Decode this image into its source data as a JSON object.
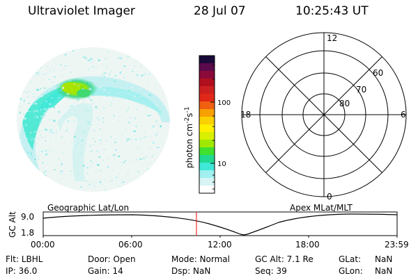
{
  "header": {
    "title": "Ultraviolet Imager",
    "date": "28 Jul 07",
    "time": "10:25:43 UT"
  },
  "colorbar": {
    "label_parts": [
      "photon cm",
      "-2",
      "s",
      "-1"
    ],
    "tick_labels": [
      "100",
      "10"
    ],
    "colors": [
      "#1a0a3a",
      "#5a0a4a",
      "#8b0a3a",
      "#b0101e",
      "#cc2020",
      "#e02818",
      "#f06010",
      "#f8a000",
      "#fad000",
      "#fff000",
      "#d8f000",
      "#a0e800",
      "#40e030",
      "#20d890",
      "#40e8d8",
      "#a0f0f0",
      "#d8f4f4",
      "#ffffff"
    ]
  },
  "polar": {
    "labels": {
      "top": "12",
      "bottom": "0",
      "left": "18",
      "right": "6"
    },
    "ring_labels": [
      "60",
      "70",
      "80"
    ]
  },
  "strip": {
    "left_title": "Geographic Lat/Lon",
    "right_title": "Apex MLat/MLT",
    "y_axis_label": "GC Alt",
    "y_ticks": [
      "9.0",
      "1.8"
    ],
    "x_ticks": [
      "00:00",
      "06:00",
      "12:00",
      "18:00",
      "23:59"
    ],
    "marker_color": "#ff0000"
  },
  "info": {
    "flt_label": "Flt:",
    "flt_value": "LBHL",
    "ip_label": "IP:",
    "ip_value": "36.0",
    "door_label": "Door:",
    "door_value": "Open",
    "gain_label": "Gain:",
    "gain_value": "14",
    "mode_label": "Mode:",
    "mode_value": "Normal",
    "dsp_label": "Dsp:",
    "dsp_value": "NaN",
    "gcalt_label": "GC Alt:",
    "gcalt_value": "7.1 Re",
    "seq_label": "Seq:",
    "seq_value": "39",
    "glat_label": "GLat:",
    "glat_value": "NaN",
    "glon_label": "GLon:",
    "glon_value": "NaN"
  }
}
